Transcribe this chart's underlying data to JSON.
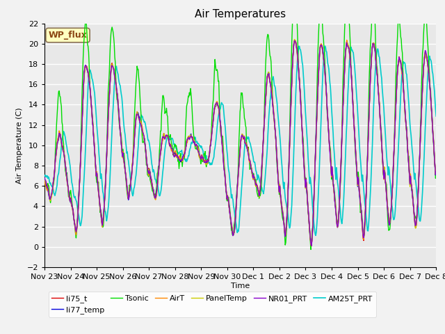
{
  "title": "Air Temperatures",
  "ylabel": "Air Temperature (C)",
  "xlabel": "Time",
  "ylim": [
    -2,
    22
  ],
  "yticks": [
    -2,
    0,
    2,
    4,
    6,
    8,
    10,
    12,
    14,
    16,
    18,
    20,
    22
  ],
  "xtick_labels": [
    "Nov 23",
    "Nov 24",
    "Nov 25",
    "Nov 26",
    "Nov 27",
    "Nov 28",
    "Nov 29",
    "Nov 30",
    "Dec 1",
    "Dec 2",
    "Dec 3",
    "Dec 4",
    "Dec 5",
    "Dec 6",
    "Dec 7",
    "Dec 8"
  ],
  "annotation_text": "WP_flux",
  "annotation_bg": "#FFFFC0",
  "annotation_edge": "#8B4513",
  "background_color": "#E8E8E8",
  "fig_bg": "#F2F2F2",
  "series": [
    {
      "name": "li75_t",
      "color": "#DD0000",
      "lw": 1.0,
      "zorder": 5
    },
    {
      "name": "li77_temp",
      "color": "#0000DD",
      "lw": 1.0,
      "zorder": 5
    },
    {
      "name": "Tsonic",
      "color": "#00DD00",
      "lw": 1.0,
      "zorder": 4
    },
    {
      "name": "AirT",
      "color": "#FF8800",
      "lw": 1.0,
      "zorder": 5
    },
    {
      "name": "PanelTemp",
      "color": "#CCCC00",
      "lw": 1.0,
      "zorder": 5
    },
    {
      "name": "NR01_PRT",
      "color": "#8800CC",
      "lw": 1.0,
      "zorder": 5
    },
    {
      "name": "AM25T_PRT",
      "color": "#00CCCC",
      "lw": 1.2,
      "zorder": 3
    }
  ],
  "title_fontsize": 11,
  "axis_label_fontsize": 8,
  "tick_fontsize": 8
}
